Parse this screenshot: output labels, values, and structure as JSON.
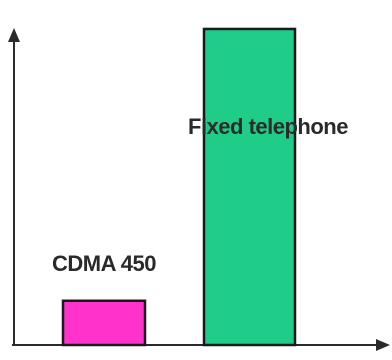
{
  "chart_data": {
    "type": "bar",
    "categories": [
      "CDMA 450",
      "Fixed telephone"
    ],
    "values": [
      1.4,
      10.0
    ],
    "colors": [
      "#ff33cc",
      "#1fcc88"
    ],
    "bar_border_color": "#1a1a1a",
    "axis_color": "#2b2b2b",
    "title": "",
    "xlabel": "",
    "ylabel": "",
    "ylim": [
      0,
      10.6
    ],
    "grid": false,
    "legend": "none",
    "axis_style": "arrows-no-ticks"
  }
}
